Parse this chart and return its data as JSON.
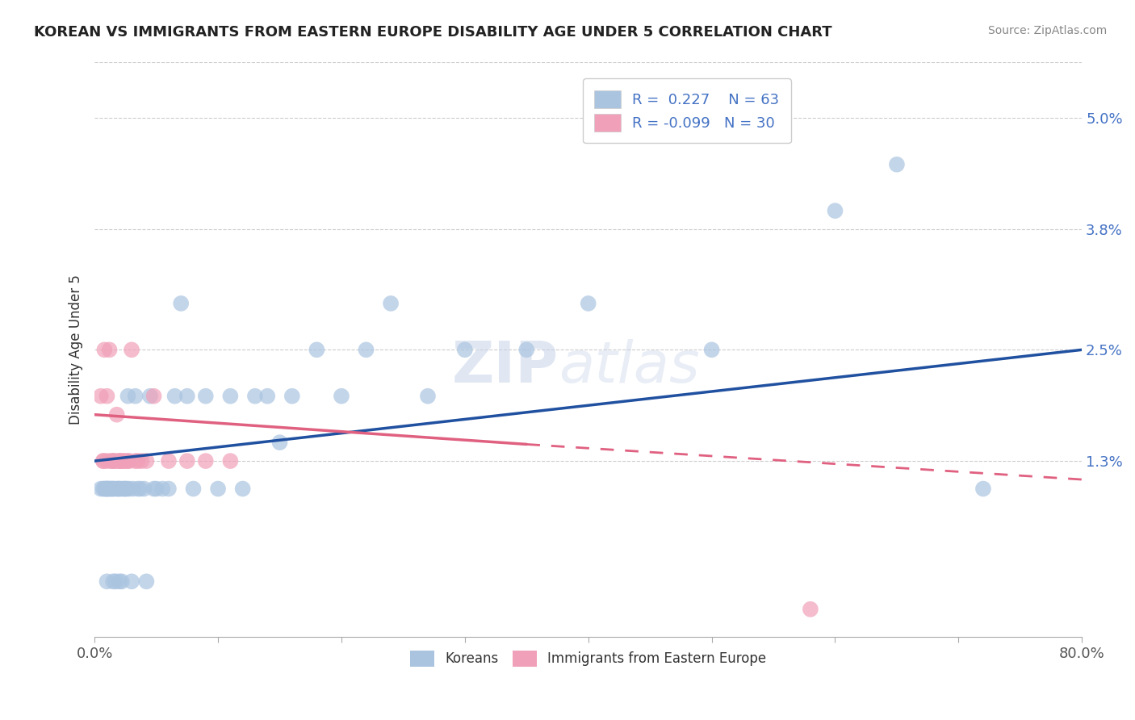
{
  "title": "KOREAN VS IMMIGRANTS FROM EASTERN EUROPE DISABILITY AGE UNDER 5 CORRELATION CHART",
  "source": "Source: ZipAtlas.com",
  "ylabel": "Disability Age Under 5",
  "xlim": [
    0.0,
    0.8
  ],
  "ylim": [
    -0.006,
    0.056
  ],
  "xticks": [
    0.0,
    0.1,
    0.2,
    0.3,
    0.4,
    0.5,
    0.6,
    0.7,
    0.8
  ],
  "xticklabels": [
    "0.0%",
    "",
    "",
    "",
    "",
    "",
    "",
    "",
    "80.0%"
  ],
  "yticks": [
    0.013,
    0.025,
    0.038,
    0.05
  ],
  "yticklabels": [
    "1.3%",
    "2.5%",
    "3.8%",
    "5.0%"
  ],
  "r_korean": 0.227,
  "n_korean": 63,
  "r_eastern": -0.099,
  "n_eastern": 30,
  "korean_color": "#aac4e0",
  "eastern_color": "#f0a0b8",
  "trend_korean_color": "#2050a0",
  "trend_eastern_color": "#e06080",
  "watermark_zip": "ZIP",
  "watermark_atlas": "atlas",
  "legend_label_korean": "Koreans",
  "legend_label_eastern": "Immigrants from Eastern Europe",
  "background_color": "#ffffff",
  "grid_color": "#cccccc",
  "korean_x": [
    0.005,
    0.007,
    0.008,
    0.009,
    0.01,
    0.01,
    0.01,
    0.011,
    0.012,
    0.013,
    0.014,
    0.015,
    0.015,
    0.016,
    0.017,
    0.018,
    0.019,
    0.02,
    0.02,
    0.021,
    0.022,
    0.023,
    0.024,
    0.025,
    0.026,
    0.027,
    0.028,
    0.03,
    0.031,
    0.033,
    0.035,
    0.037,
    0.04,
    0.042,
    0.045,
    0.048,
    0.05,
    0.055,
    0.06,
    0.065,
    0.07,
    0.075,
    0.08,
    0.09,
    0.1,
    0.11,
    0.12,
    0.13,
    0.14,
    0.15,
    0.16,
    0.18,
    0.2,
    0.22,
    0.24,
    0.27,
    0.3,
    0.35,
    0.4,
    0.5,
    0.6,
    0.65,
    0.72
  ],
  "korean_y": [
    0.01,
    0.01,
    0.01,
    0.01,
    0.01,
    0.0,
    0.01,
    0.01,
    0.01,
    0.01,
    0.01,
    0.0,
    0.01,
    0.01,
    0.0,
    0.01,
    0.01,
    0.0,
    0.01,
    0.01,
    0.0,
    0.01,
    0.01,
    0.01,
    0.01,
    0.02,
    0.01,
    0.0,
    0.01,
    0.02,
    0.01,
    0.01,
    0.01,
    0.0,
    0.02,
    0.01,
    0.01,
    0.01,
    0.01,
    0.02,
    0.03,
    0.02,
    0.01,
    0.02,
    0.01,
    0.02,
    0.01,
    0.02,
    0.02,
    0.015,
    0.02,
    0.025,
    0.02,
    0.025,
    0.03,
    0.02,
    0.025,
    0.025,
    0.03,
    0.025,
    0.04,
    0.045,
    0.01
  ],
  "eastern_x": [
    0.005,
    0.007,
    0.007,
    0.008,
    0.01,
    0.01,
    0.012,
    0.013,
    0.015,
    0.015,
    0.017,
    0.018,
    0.02,
    0.02,
    0.022,
    0.023,
    0.025,
    0.027,
    0.028,
    0.03,
    0.033,
    0.035,
    0.038,
    0.042,
    0.048,
    0.06,
    0.075,
    0.09,
    0.11,
    0.58
  ],
  "eastern_y": [
    0.02,
    0.013,
    0.013,
    0.025,
    0.013,
    0.02,
    0.025,
    0.013,
    0.013,
    0.013,
    0.013,
    0.018,
    0.013,
    0.013,
    0.013,
    0.013,
    0.013,
    0.013,
    0.013,
    0.025,
    0.013,
    0.013,
    0.013,
    0.013,
    0.02,
    0.013,
    0.013,
    0.013,
    0.013,
    -0.003
  ],
  "trend_k_x0": 0.0,
  "trend_k_y0": 0.013,
  "trend_k_x1": 0.8,
  "trend_k_y1": 0.025,
  "trend_e_x0": 0.0,
  "trend_e_y0": 0.018,
  "trend_e_x1": 0.8,
  "trend_e_y1": 0.011,
  "trend_e_solid_x1": 0.35,
  "trend_e_solid_y1": 0.0148
}
